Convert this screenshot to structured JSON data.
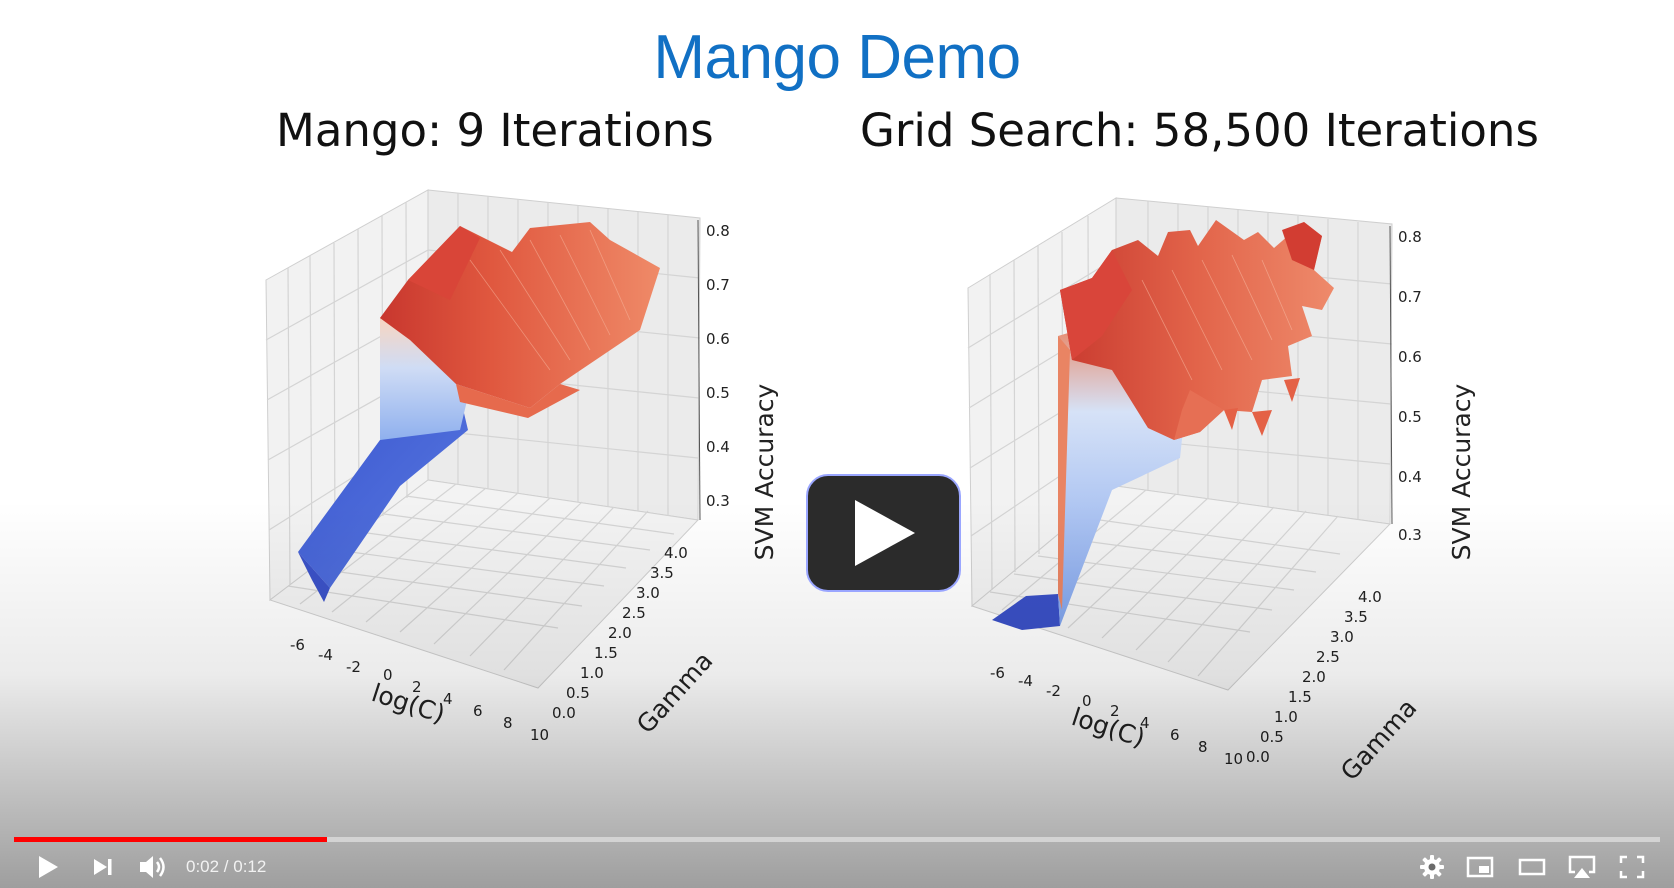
{
  "slide": {
    "title": "Mango Demo"
  },
  "plots": [
    {
      "title": "Mango: 9 Iterations",
      "xlabel": "log(C)",
      "ylabel": "Gamma",
      "zlabel": "SVM Accuracy",
      "xticks": [
        "-6",
        "-4",
        "-2",
        "0",
        "2",
        "4",
        "6",
        "8",
        "10"
      ],
      "yticks": [
        "0.0",
        "0.5",
        "1.0",
        "1.5",
        "2.0",
        "2.5",
        "3.0",
        "3.5",
        "4.0"
      ],
      "zticks": [
        "0.3",
        "0.4",
        "0.5",
        "0.6",
        "0.7",
        "0.8"
      ]
    },
    {
      "title": "Grid Search: 58,500 Iterations",
      "xlabel": "log(C)",
      "ylabel": "Gamma",
      "zlabel": "SVM Accuracy",
      "xticks": [
        "-6",
        "-4",
        "-2",
        "0",
        "2",
        "4",
        "6",
        "8",
        "10"
      ],
      "yticks": [
        "0.0",
        "0.5",
        "1.0",
        "1.5",
        "2.0",
        "2.5",
        "3.0",
        "3.5",
        "4.0"
      ],
      "zticks": [
        "0.3",
        "0.4",
        "0.5",
        "0.6",
        "0.7",
        "0.8"
      ]
    }
  ],
  "player": {
    "time_display": "0:02 / 0:12",
    "progress_fraction": 0.19,
    "progress_color": "#ff0000",
    "icons": {
      "big_play": "play-icon",
      "play": "play-icon",
      "next": "next-icon",
      "volume": "volume-icon",
      "settings": "gear-icon",
      "miniplayer": "miniplayer-icon",
      "theater": "theater-icon",
      "airplay": "airplay-icon",
      "fullscreen": "fullscreen-icon"
    }
  }
}
